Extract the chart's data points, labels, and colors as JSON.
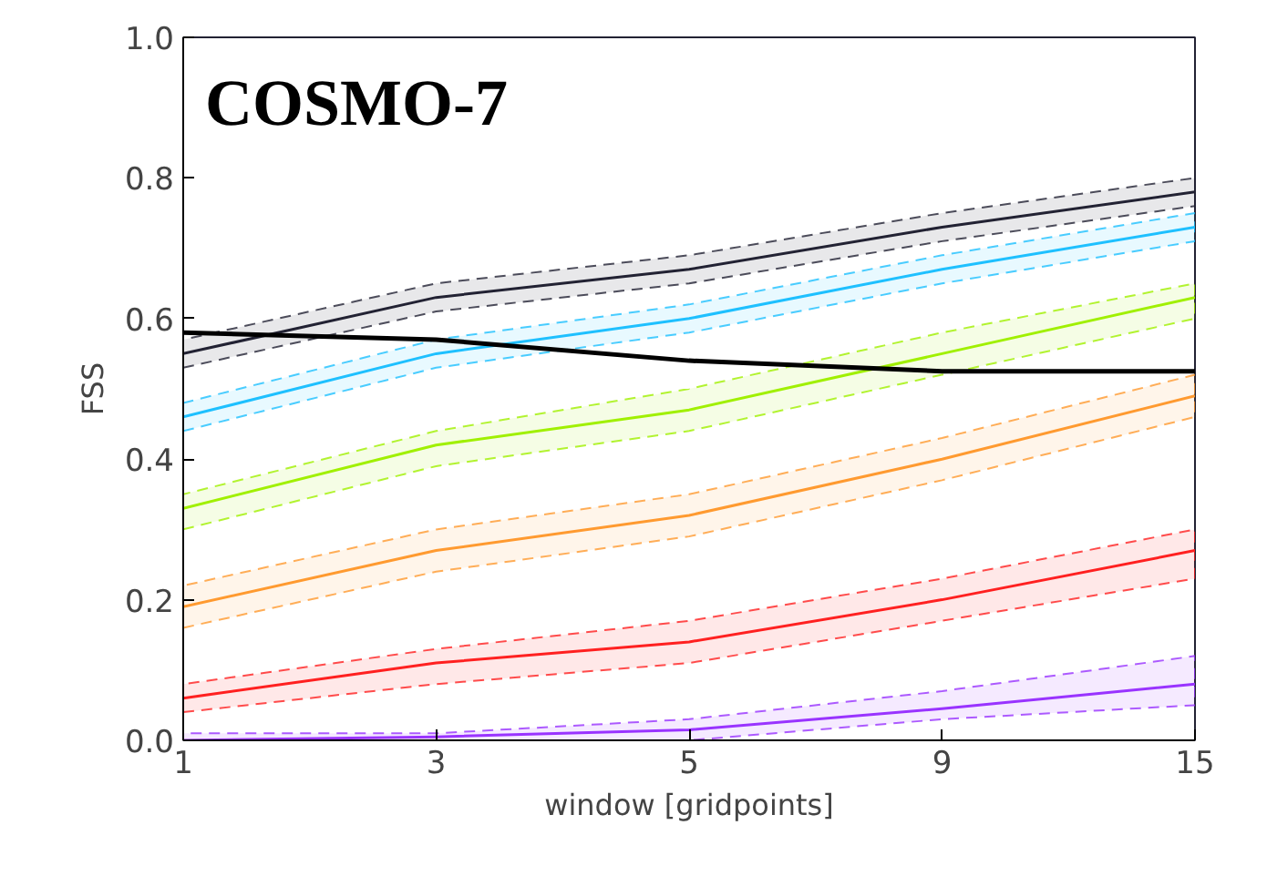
{
  "chart_data": {
    "type": "line",
    "xlabel": "window [gridpoints]",
    "ylabel": "FSS",
    "categories": [
      "1",
      "3",
      "5",
      "9",
      "15"
    ],
    "ylim": [
      0.0,
      1.0
    ],
    "yticks": [
      {
        "value": 0.0,
        "label": "0.0"
      },
      0.2,
      0.4,
      0.6,
      0.8,
      {
        "value": 1.0,
        "label": "1.0"
      }
    ],
    "grid": false,
    "marker": "none",
    "line_style": "solid",
    "annotations": [
      "COSMO-7"
    ],
    "series": [
      {
        "color": "#222233",
        "values": [
          0.55,
          0.63,
          0.67,
          0.73,
          0.78
        ],
        "lower": [
          0.53,
          0.61,
          0.65,
          0.71,
          0.76
        ],
        "upper": [
          0.57,
          0.65,
          0.69,
          0.75,
          0.8
        ]
      },
      {
        "color": "#1ec0ff",
        "values": [
          0.46,
          0.55,
          0.6,
          0.67,
          0.73
        ],
        "lower": [
          0.44,
          0.53,
          0.58,
          0.65,
          0.71
        ],
        "upper": [
          0.48,
          0.57,
          0.62,
          0.69,
          0.75
        ]
      },
      {
        "color": "#a0f000",
        "values": [
          0.33,
          0.42,
          0.47,
          0.55,
          0.63
        ],
        "lower": [
          0.3,
          0.39,
          0.44,
          0.52,
          0.6
        ],
        "upper": [
          0.35,
          0.44,
          0.5,
          0.58,
          0.65
        ]
      },
      {
        "color": "#ff9a30",
        "values": [
          0.19,
          0.27,
          0.32,
          0.4,
          0.49
        ],
        "lower": [
          0.16,
          0.24,
          0.29,
          0.37,
          0.46
        ],
        "upper": [
          0.22,
          0.3,
          0.35,
          0.43,
          0.52
        ]
      },
      {
        "color": "#ff2020",
        "values": [
          0.06,
          0.11,
          0.14,
          0.2,
          0.27
        ],
        "lower": [
          0.04,
          0.08,
          0.11,
          0.17,
          0.23
        ],
        "upper": [
          0.08,
          0.13,
          0.17,
          0.23,
          0.3
        ]
      },
      {
        "color": "#9933ff",
        "values": [
          0.0,
          0.005,
          0.015,
          0.045,
          0.08
        ],
        "lower": [
          0.0,
          0.0,
          0.0,
          0.03,
          0.05
        ],
        "upper": [
          0.01,
          0.01,
          0.03,
          0.07,
          0.12
        ]
      },
      {
        "color": "#000000",
        "values": [
          0.58,
          0.57,
          0.54,
          0.525,
          0.525
        ]
      }
    ]
  }
}
